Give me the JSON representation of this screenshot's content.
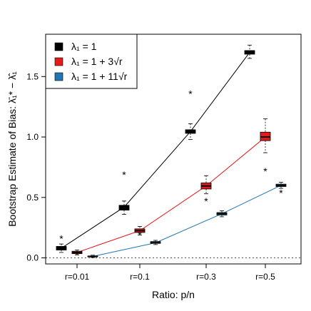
{
  "chart_data": {
    "type": "box",
    "categories": [
      "r=0.01",
      "r=0.1",
      "r=0.3",
      "r=0.5"
    ],
    "xlabel": "Ratio: p/n",
    "ylabel": "Bootstrap Estimate of Bias: λ̄₁* − λ̂₁",
    "ylim": [
      -0.05,
      1.85
    ],
    "yticks": [
      0.0,
      0.5,
      1.0,
      1.5
    ],
    "ytick_labels": [
      "0.0",
      "0.5",
      "1.0",
      "1.5"
    ],
    "reference_line": {
      "y": 0.0,
      "style": "dotted"
    },
    "legend": {
      "placement": "top-left"
    },
    "series": [
      {
        "name": "λ₁ = 1",
        "color": "#000000",
        "boxes": [
          {
            "q1": 0.065,
            "median": 0.08,
            "q3": 0.095,
            "low": 0.045,
            "high": 0.115,
            "outliers": [
              0.17
            ]
          },
          {
            "q1": 0.395,
            "median": 0.42,
            "q3": 0.435,
            "low": 0.36,
            "high": 0.47,
            "outliers": [
              0.7
            ]
          },
          {
            "q1": 1.03,
            "median": 1.045,
            "q3": 1.06,
            "low": 0.98,
            "high": 1.11,
            "outliers": [
              1.37
            ]
          },
          {
            "q1": 1.685,
            "median": 1.7,
            "q3": 1.715,
            "low": 1.65,
            "high": 1.76,
            "outliers": []
          }
        ]
      },
      {
        "name": "λ₁ = 1 + 3√r",
        "color": "#e41a1c",
        "boxes": [
          {
            "q1": 0.035,
            "median": 0.045,
            "q3": 0.055,
            "low": 0.025,
            "high": 0.065,
            "outliers": [
              0.04
            ]
          },
          {
            "q1": 0.21,
            "median": 0.225,
            "q3": 0.24,
            "low": 0.19,
            "high": 0.26,
            "outliers": [
              0.2
            ]
          },
          {
            "q1": 0.57,
            "median": 0.595,
            "q3": 0.62,
            "low": 0.53,
            "high": 0.68,
            "outliers": [
              0.48
            ]
          },
          {
            "q1": 0.97,
            "median": 1.0,
            "q3": 1.04,
            "low": 0.87,
            "high": 1.15,
            "outliers": [
              0.73
            ]
          }
        ]
      },
      {
        "name": "λ₁ = 1 + 11√r",
        "color": "#1f78b4",
        "boxes": [
          {
            "q1": 0.008,
            "median": 0.012,
            "q3": 0.016,
            "low": 0.003,
            "high": 0.022,
            "outliers": []
          },
          {
            "q1": 0.12,
            "median": 0.125,
            "q3": 0.135,
            "low": 0.11,
            "high": 0.145,
            "outliers": []
          },
          {
            "q1": 0.355,
            "median": 0.365,
            "q3": 0.375,
            "low": 0.34,
            "high": 0.39,
            "outliers": []
          },
          {
            "q1": 0.59,
            "median": 0.6,
            "q3": 0.61,
            "low": 0.575,
            "high": 0.625,
            "outliers": [
              0.55
            ]
          }
        ]
      }
    ]
  }
}
